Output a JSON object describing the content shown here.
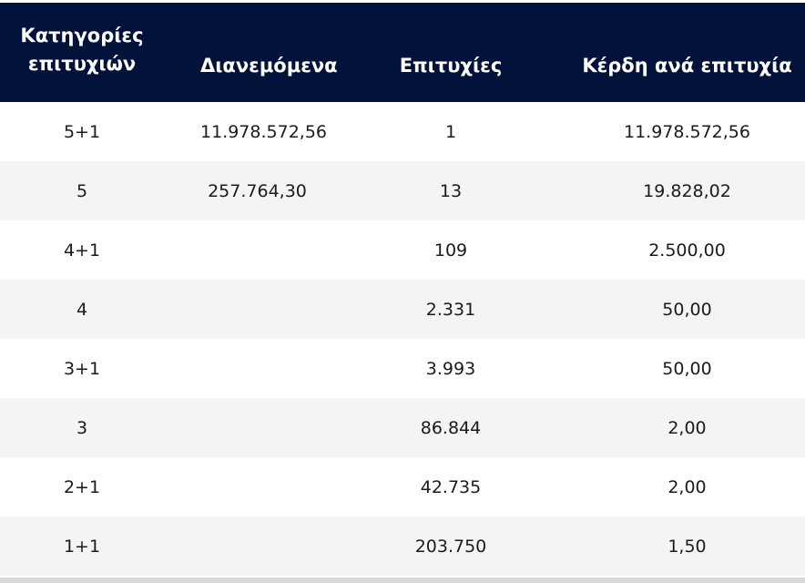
{
  "header": {
    "category": "Κατηγορίες επιτυχιών",
    "distributed": "Διανεμόμενα",
    "winners": "Επιτυχίες",
    "prize_per_winner": "Κέρδη ανά επιτυχία"
  },
  "rows": [
    {
      "category": "5+1",
      "distributed": "11.978.572,56",
      "winners": "1",
      "prize": "11.978.572,56"
    },
    {
      "category": "5",
      "distributed": "257.764,30",
      "winners": "13",
      "prize": "19.828,02"
    },
    {
      "category": "4+1",
      "distributed": "",
      "winners": "109",
      "prize": "2.500,00"
    },
    {
      "category": "4",
      "distributed": "",
      "winners": "2.331",
      "prize": "50,00"
    },
    {
      "category": "3+1",
      "distributed": "",
      "winners": "3.993",
      "prize": "50,00"
    },
    {
      "category": "3",
      "distributed": "",
      "winners": "86.844",
      "prize": "2,00"
    },
    {
      "category": "2+1",
      "distributed": "",
      "winners": "42.735",
      "prize": "2,00"
    },
    {
      "category": "1+1",
      "distributed": "",
      "winners": "203.750",
      "prize": "1,50"
    }
  ],
  "colors": {
    "header_bg": "#03123a",
    "header_text": "#ffffff",
    "row_alt_bg": "#f4f4f6",
    "text": "#1b1b1f"
  }
}
